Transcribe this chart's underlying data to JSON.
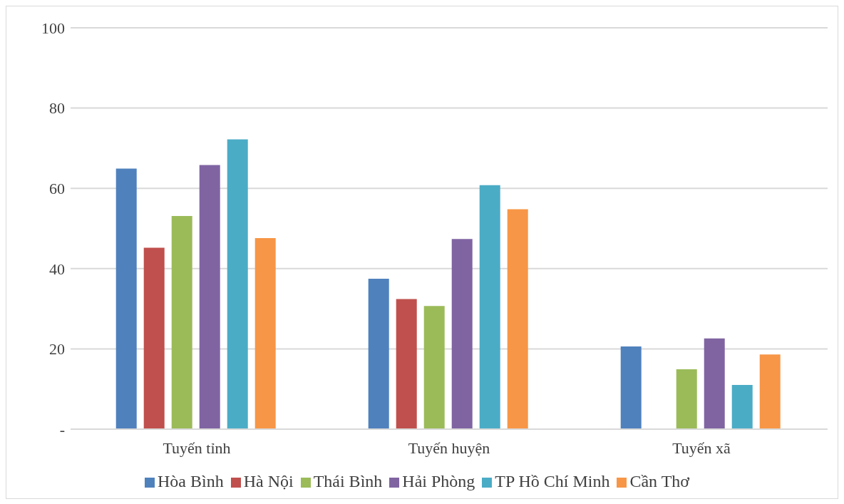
{
  "chart_data": {
    "type": "bar",
    "categories": [
      "Tuyến tỉnh",
      "Tuyến huyện",
      "Tuyến xã"
    ],
    "series": [
      {
        "name": "Hòa Bình",
        "color": "#4f81bd",
        "values": [
          64.9,
          37.5,
          20.6
        ]
      },
      {
        "name": "Hà Nội",
        "color": "#c0504d",
        "values": [
          45.2,
          32.4,
          0
        ]
      },
      {
        "name": "Thái Bình",
        "color": "#9bbb59",
        "values": [
          53.1,
          30.7,
          14.9
        ]
      },
      {
        "name": "Hải Phòng",
        "color": "#8064a2",
        "values": [
          65.8,
          47.4,
          22.6
        ]
      },
      {
        "name": "TP Hồ Chí Minh",
        "color": "#4bacc6",
        "values": [
          72.2,
          60.8,
          11.0
        ]
      },
      {
        "name": "Cần Thơ",
        "color": "#f79646",
        "values": [
          47.6,
          54.8,
          18.6
        ]
      }
    ],
    "ylim": [
      0,
      100
    ],
    "yticks": [
      {
        "value": 0,
        "label": "-"
      },
      20,
      40,
      60,
      80,
      100
    ],
    "grid": "y",
    "legend": "bottom"
  }
}
